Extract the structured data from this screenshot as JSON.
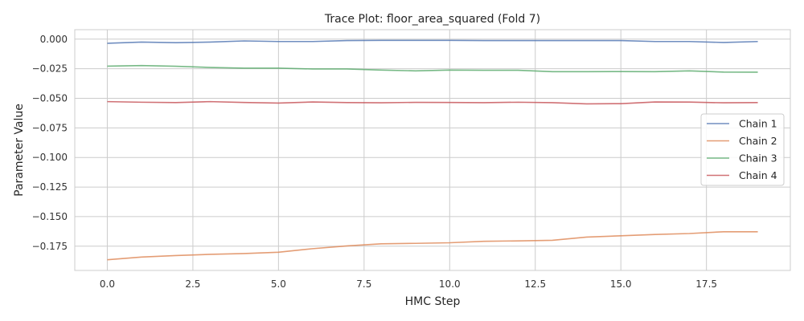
{
  "chart_data": {
    "type": "line",
    "title": "Trace Plot: floor_area_squared (Fold 7)",
    "xlabel": "HMC Step",
    "ylabel": "Parameter Value",
    "xlim": [
      -0.95,
      19.95
    ],
    "ylim": [
      -0.1955,
      0.008
    ],
    "xticks": [
      "0.0",
      "2.5",
      "5.0",
      "7.5",
      "10.0",
      "12.5",
      "15.0",
      "17.5"
    ],
    "xtick_values": [
      0,
      2.5,
      5,
      7.5,
      10,
      12.5,
      15,
      17.5
    ],
    "yticks": [
      "0.000",
      "−0.025",
      "−0.050",
      "−0.075",
      "−0.100",
      "−0.125",
      "−0.150",
      "−0.175"
    ],
    "ytick_values": [
      0,
      -0.025,
      -0.05,
      -0.075,
      -0.1,
      -0.125,
      -0.15,
      -0.175
    ],
    "grid": true,
    "legend_position": "center-right",
    "x": [
      0,
      1,
      2,
      3,
      4,
      5,
      6,
      7,
      8,
      9,
      10,
      11,
      12,
      13,
      14,
      15,
      16,
      17,
      18,
      19
    ],
    "series": [
      {
        "name": "Chain 1",
        "color": "#4c72b0",
        "values": [
          -0.0035,
          -0.0025,
          -0.003,
          -0.0025,
          -0.0015,
          -0.002,
          -0.002,
          -0.0012,
          -0.001,
          -0.001,
          -0.001,
          -0.0012,
          -0.0012,
          -0.0012,
          -0.0012,
          -0.0012,
          -0.002,
          -0.002,
          -0.0028,
          -0.002
        ]
      },
      {
        "name": "Chain 2",
        "color": "#dd8452",
        "values": [
          -0.1865,
          -0.1842,
          -0.1829,
          -0.1819,
          -0.1812,
          -0.1801,
          -0.1771,
          -0.1748,
          -0.173,
          -0.1726,
          -0.1721,
          -0.1709,
          -0.1705,
          -0.17,
          -0.1673,
          -0.1662,
          -0.1651,
          -0.1643,
          -0.1628,
          -0.1628
        ]
      },
      {
        "name": "Chain 3",
        "color": "#55a868",
        "values": [
          -0.0228,
          -0.0223,
          -0.0229,
          -0.0239,
          -0.0245,
          -0.0245,
          -0.0252,
          -0.0252,
          -0.0261,
          -0.0268,
          -0.0261,
          -0.0263,
          -0.0263,
          -0.0275,
          -0.0275,
          -0.0274,
          -0.0275,
          -0.0268,
          -0.0278,
          -0.0279
        ]
      },
      {
        "name": "Chain 4",
        "color": "#c44e52",
        "values": [
          -0.0528,
          -0.0533,
          -0.0536,
          -0.0528,
          -0.0535,
          -0.054,
          -0.0531,
          -0.0536,
          -0.0538,
          -0.0534,
          -0.0535,
          -0.0537,
          -0.0533,
          -0.0537,
          -0.0547,
          -0.0545,
          -0.0531,
          -0.0532,
          -0.0538,
          -0.0536
        ]
      }
    ]
  }
}
